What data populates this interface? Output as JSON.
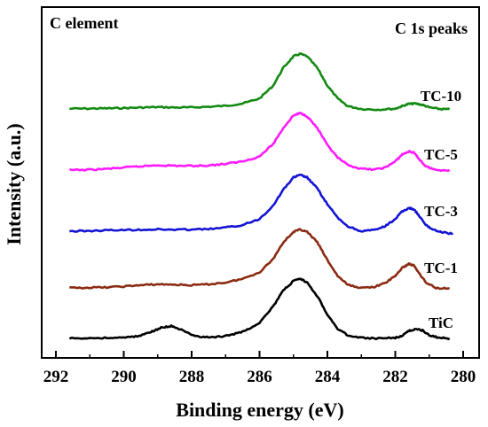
{
  "chart_data": {
    "type": "line",
    "title_left": "C element",
    "title_right": "C 1s peaks",
    "xlabel": "Binding energy (eV)",
    "ylabel": "Intensity (a.u.)",
    "xlim": [
      292,
      280
    ],
    "x_reversed": true,
    "x_ticks": [
      292,
      290,
      288,
      286,
      284,
      282,
      280
    ],
    "y_ticks": [],
    "grid": false,
    "series": [
      {
        "name": "TC-10",
        "color": "#138a13",
        "points": [
          [
            291.6,
            0.06
          ],
          [
            291,
            0.062
          ],
          [
            290.5,
            0.065
          ],
          [
            290,
            0.07
          ],
          [
            289.5,
            0.078
          ],
          [
            289,
            0.085
          ],
          [
            288.5,
            0.078
          ],
          [
            288,
            0.08
          ],
          [
            287.5,
            0.09
          ],
          [
            287,
            0.105
          ],
          [
            286.5,
            0.14
          ],
          [
            286,
            0.22
          ],
          [
            285.6,
            0.42
          ],
          [
            285.3,
            0.7
          ],
          [
            285.0,
            0.88
          ],
          [
            284.8,
            0.92
          ],
          [
            284.6,
            0.88
          ],
          [
            284.3,
            0.7
          ],
          [
            284,
            0.42
          ],
          [
            283.7,
            0.22
          ],
          [
            283.4,
            0.1
          ],
          [
            283,
            0.055
          ],
          [
            282.5,
            0.045
          ],
          [
            282,
            0.06
          ],
          [
            281.8,
            0.1
          ],
          [
            281.6,
            0.135
          ],
          [
            281.4,
            0.14
          ],
          [
            281.2,
            0.12
          ],
          [
            281,
            0.08
          ],
          [
            280.7,
            0.055
          ],
          [
            280.4,
            0.05
          ]
        ]
      },
      {
        "name": "TC-5",
        "color": "#ff1aff",
        "points": [
          [
            291.6,
            0.0
          ],
          [
            291,
            0.005
          ],
          [
            290.5,
            0.02
          ],
          [
            290,
            0.04
          ],
          [
            289.5,
            0.06
          ],
          [
            289,
            0.08
          ],
          [
            288.5,
            0.07
          ],
          [
            288,
            0.068
          ],
          [
            287.5,
            0.075
          ],
          [
            287,
            0.1
          ],
          [
            286.5,
            0.14
          ],
          [
            286,
            0.22
          ],
          [
            285.6,
            0.42
          ],
          [
            285.3,
            0.68
          ],
          [
            285.0,
            0.88
          ],
          [
            284.8,
            0.92
          ],
          [
            284.6,
            0.87
          ],
          [
            284.3,
            0.68
          ],
          [
            284,
            0.4
          ],
          [
            283.7,
            0.2
          ],
          [
            283.4,
            0.08
          ],
          [
            283,
            0.02
          ],
          [
            282.6,
            0.01
          ],
          [
            282.3,
            0.04
          ],
          [
            282,
            0.14
          ],
          [
            281.8,
            0.25
          ],
          [
            281.6,
            0.3
          ],
          [
            281.45,
            0.28
          ],
          [
            281.3,
            0.18
          ],
          [
            281.1,
            0.06
          ],
          [
            280.8,
            0.0
          ],
          [
            280.4,
            0.0
          ]
        ]
      },
      {
        "name": "TC-3",
        "color": "#1414d4",
        "points": [
          [
            291.6,
            0.0
          ],
          [
            291,
            0.005
          ],
          [
            290.5,
            0.015
          ],
          [
            290,
            0.02
          ],
          [
            289.5,
            0.025
          ],
          [
            289,
            0.03
          ],
          [
            288.5,
            0.025
          ],
          [
            288,
            0.028
          ],
          [
            287.5,
            0.035
          ],
          [
            287,
            0.06
          ],
          [
            286.5,
            0.1
          ],
          [
            286,
            0.2
          ],
          [
            285.6,
            0.42
          ],
          [
            285.3,
            0.68
          ],
          [
            285.0,
            0.88
          ],
          [
            284.8,
            0.92
          ],
          [
            284.6,
            0.88
          ],
          [
            284.3,
            0.7
          ],
          [
            284,
            0.44
          ],
          [
            283.7,
            0.22
          ],
          [
            283.4,
            0.08
          ],
          [
            283,
            0.0
          ],
          [
            282.6,
            0.02
          ],
          [
            282.3,
            0.08
          ],
          [
            282,
            0.2
          ],
          [
            281.8,
            0.32
          ],
          [
            281.6,
            0.38
          ],
          [
            281.45,
            0.36
          ],
          [
            281.3,
            0.25
          ],
          [
            281.1,
            0.1
          ],
          [
            280.9,
            0.03
          ],
          [
            280.6,
            -0.02
          ],
          [
            280.3,
            -0.04
          ]
        ]
      },
      {
        "name": "TC-1",
        "color": "#8b2b12",
        "points": [
          [
            291.6,
            0.0
          ],
          [
            291,
            0.005
          ],
          [
            290.5,
            0.01
          ],
          [
            290,
            0.025
          ],
          [
            289.5,
            0.045
          ],
          [
            289,
            0.06
          ],
          [
            288.5,
            0.055
          ],
          [
            288,
            0.045
          ],
          [
            287.5,
            0.06
          ],
          [
            287,
            0.09
          ],
          [
            286.5,
            0.15
          ],
          [
            286,
            0.26
          ],
          [
            285.6,
            0.48
          ],
          [
            285.3,
            0.76
          ],
          [
            285.0,
            0.93
          ],
          [
            284.8,
            0.97
          ],
          [
            284.6,
            0.93
          ],
          [
            284.3,
            0.76
          ],
          [
            284,
            0.46
          ],
          [
            283.7,
            0.2
          ],
          [
            283.4,
            0.05
          ],
          [
            283,
            0.0
          ],
          [
            282.6,
            0.02
          ],
          [
            282.3,
            0.08
          ],
          [
            282,
            0.2
          ],
          [
            281.8,
            0.33
          ],
          [
            281.6,
            0.4
          ],
          [
            281.45,
            0.37
          ],
          [
            281.3,
            0.25
          ],
          [
            281.1,
            0.09
          ],
          [
            280.8,
            0.0
          ],
          [
            280.4,
            -0.01
          ]
        ]
      },
      {
        "name": "TiC",
        "color": "#000000",
        "points": [
          [
            291.6,
            0.0
          ],
          [
            291,
            0.005
          ],
          [
            290.5,
            0.01
          ],
          [
            290,
            0.015
          ],
          [
            289.6,
            0.04
          ],
          [
            289.2,
            0.12
          ],
          [
            288.9,
            0.2
          ],
          [
            288.6,
            0.23
          ],
          [
            288.3,
            0.16
          ],
          [
            288,
            0.06
          ],
          [
            287.6,
            0.02
          ],
          [
            287.2,
            0.03
          ],
          [
            286.8,
            0.07
          ],
          [
            286.4,
            0.15
          ],
          [
            286,
            0.3
          ],
          [
            285.6,
            0.6
          ],
          [
            285.3,
            0.9
          ],
          [
            285.0,
            1.08
          ],
          [
            284.8,
            1.12
          ],
          [
            284.6,
            1.05
          ],
          [
            284.3,
            0.8
          ],
          [
            284,
            0.45
          ],
          [
            283.7,
            0.18
          ],
          [
            283.4,
            0.06
          ],
          [
            283,
            0.01
          ],
          [
            282.5,
            0.0
          ],
          [
            282,
            0.01
          ],
          [
            281.8,
            0.05
          ],
          [
            281.6,
            0.14
          ],
          [
            281.4,
            0.18
          ],
          [
            281.2,
            0.15
          ],
          [
            281,
            0.06
          ],
          [
            280.7,
            0.01
          ],
          [
            280.4,
            0.0
          ]
        ]
      }
    ]
  }
}
